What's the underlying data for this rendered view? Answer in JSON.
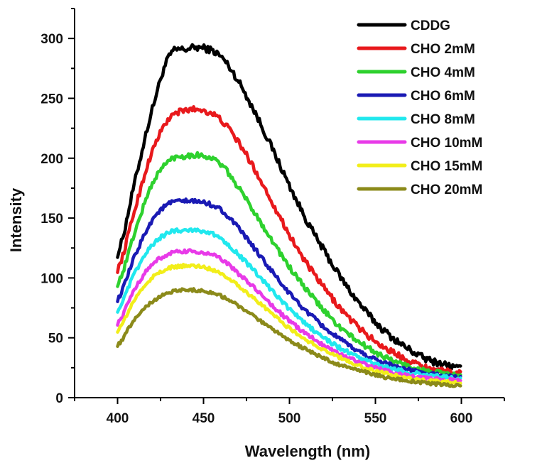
{
  "chart_data": {
    "type": "line",
    "title": "",
    "xlabel": "Wavelength (nm)",
    "ylabel": "Intensity",
    "xlim": [
      375,
      625
    ],
    "ylim": [
      0,
      325
    ],
    "xticks": [
      400,
      450,
      500,
      550,
      600
    ],
    "yticks": [
      0,
      50,
      100,
      150,
      200,
      250,
      300
    ],
    "x_minor_step": 25,
    "y_minor_step": 25,
    "grid": false,
    "legend_position": "top-right",
    "x": [
      400,
      410,
      420,
      430,
      440,
      450,
      460,
      470,
      480,
      490,
      500,
      510,
      520,
      530,
      540,
      550,
      560,
      570,
      580,
      590,
      600
    ],
    "series": [
      {
        "name": "CDDG",
        "color": "#000000",
        "values": [
          120,
          180,
          240,
          285,
          291,
          292,
          285,
          265,
          238,
          208,
          177,
          148,
          123,
          100,
          80,
          63,
          50,
          40,
          32,
          28,
          24
        ]
      },
      {
        "name": "CHO 2mM",
        "color": "#e8191c",
        "values": [
          107,
          157,
          205,
          233,
          240,
          240,
          232,
          214,
          190,
          163,
          136,
          112,
          92,
          74,
          59,
          47,
          38,
          31,
          25,
          22,
          20
        ]
      },
      {
        "name": "CHO 4mM",
        "color": "#2ed12e",
        "values": [
          95,
          138,
          178,
          198,
          202,
          202,
          195,
          176,
          154,
          131,
          109,
          90,
          73,
          58,
          47,
          38,
          31,
          26,
          22,
          20,
          18
        ]
      },
      {
        "name": "CHO 6mM",
        "color": "#1a1ab4",
        "values": [
          82,
          118,
          148,
          162,
          164,
          163,
          157,
          142,
          124,
          105,
          87,
          72,
          59,
          48,
          39,
          32,
          27,
          23,
          20,
          18,
          17
        ]
      },
      {
        "name": "CHO 8mM",
        "color": "#21e8ee",
        "values": [
          73,
          104,
          127,
          138,
          140,
          139,
          133,
          120,
          105,
          89,
          74,
          61,
          50,
          41,
          34,
          28,
          24,
          21,
          19,
          17,
          16
        ]
      },
      {
        "name": "CHO 10mM",
        "color": "#e83ae8",
        "values": [
          62,
          91,
          111,
          120,
          122,
          121,
          116,
          104,
          91,
          77,
          64,
          53,
          44,
          36,
          30,
          25,
          21,
          18,
          16,
          15,
          14
        ]
      },
      {
        "name": "CHO 15mM",
        "color": "#f2ee1a",
        "values": [
          56,
          82,
          100,
          108,
          110,
          109,
          104,
          94,
          82,
          70,
          58,
          48,
          40,
          33,
          27,
          22,
          19,
          16,
          14,
          13,
          12
        ]
      },
      {
        "name": "CHO 20mM",
        "color": "#8b8a1a",
        "values": [
          44,
          66,
          80,
          88,
          90,
          89,
          85,
          77,
          67,
          57,
          48,
          40,
          33,
          27,
          23,
          19,
          16,
          14,
          12,
          11,
          10
        ]
      }
    ]
  }
}
